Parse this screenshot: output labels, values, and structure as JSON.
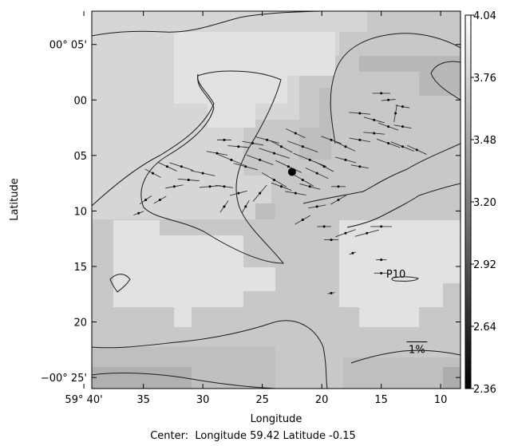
{
  "chart_data": {
    "type": "map",
    "xlabel": "Longitude",
    "ylabel": "Latitude",
    "footer": {
      "prefix": "Center:  Longitude",
      "longitude": "59.42",
      "lat_prefix": "Latitude",
      "latitude": "-0.15"
    },
    "xlim": [
      59.6556,
      59.1389
    ],
    "ylim": [
      0.1333,
      -0.4333
    ],
    "x_ticks": [
      {
        "value": 59.6667,
        "label": "59° 40'"
      },
      {
        "value": 59.5833,
        "label": "35"
      },
      {
        "value": 59.5,
        "label": "30"
      },
      {
        "value": 59.4167,
        "label": "25"
      },
      {
        "value": 59.3333,
        "label": "20"
      },
      {
        "value": 59.25,
        "label": "15"
      },
      {
        "value": 59.1667,
        "label": "10"
      }
    ],
    "y_ticks": [
      {
        "value": 0.0833,
        "label": "00° 05'"
      },
      {
        "value": 0.0,
        "label": "00"
      },
      {
        "value": -0.0833,
        "label": "05"
      },
      {
        "value": -0.1667,
        "label": "10"
      },
      {
        "value": -0.25,
        "label": "15"
      },
      {
        "value": -0.3333,
        "label": "20"
      },
      {
        "value": -0.4167,
        "label": "−00° 25'"
      }
    ],
    "colorbar": {
      "min": 2.36,
      "max": 4.04,
      "ticks": [
        "2.36",
        "2.64",
        "2.92",
        "3.20",
        "3.48",
        "3.76",
        "4.04"
      ]
    },
    "center_marker": {
      "lon": 59.375,
      "lat": -0.108
    },
    "annotations": [
      {
        "text": "P10",
        "lon": 59.243,
        "lat": -0.267
      },
      {
        "text": "1%",
        "lon": 59.2,
        "lat": -0.38
      }
    ],
    "vectors": [
      {
        "lon": 59.36,
        "lat": -0.07,
        "len": 0.045,
        "angle": -20
      },
      {
        "lon": 59.35,
        "lat": -0.09,
        "len": 0.05,
        "angle": -22
      },
      {
        "lon": 59.38,
        "lat": -0.1,
        "len": 0.04,
        "angle": -25
      },
      {
        "lon": 59.4,
        "lat": -0.08,
        "len": 0.045,
        "angle": -18
      },
      {
        "lon": 59.42,
        "lat": -0.09,
        "len": 0.04,
        "angle": -20
      },
      {
        "lon": 59.44,
        "lat": -0.1,
        "len": 0.035,
        "angle": -15
      },
      {
        "lon": 59.46,
        "lat": -0.09,
        "len": 0.04,
        "angle": -22
      },
      {
        "lon": 59.48,
        "lat": -0.08,
        "len": 0.03,
        "angle": -10
      },
      {
        "lon": 59.5,
        "lat": -0.11,
        "len": 0.035,
        "angle": -12
      },
      {
        "lon": 59.52,
        "lat": -0.12,
        "len": 0.03,
        "angle": -5
      },
      {
        "lon": 59.54,
        "lat": -0.13,
        "len": 0.025,
        "angle": 10
      },
      {
        "lon": 59.56,
        "lat": -0.15,
        "len": 0.02,
        "angle": 30
      },
      {
        "lon": 59.58,
        "lat": -0.15,
        "len": 0.02,
        "angle": 35
      },
      {
        "lon": 59.59,
        "lat": -0.17,
        "len": 0.015,
        "angle": 20
      },
      {
        "lon": 59.53,
        "lat": -0.1,
        "len": 0.035,
        "angle": -18
      },
      {
        "lon": 59.55,
        "lat": -0.1,
        "len": 0.03,
        "angle": -25
      },
      {
        "lon": 59.57,
        "lat": -0.11,
        "len": 0.025,
        "angle": -28
      },
      {
        "lon": 59.49,
        "lat": -0.13,
        "len": 0.03,
        "angle": 5
      },
      {
        "lon": 59.47,
        "lat": -0.13,
        "len": 0.025,
        "angle": -8
      },
      {
        "lon": 59.45,
        "lat": -0.14,
        "len": 0.025,
        "angle": 15
      },
      {
        "lon": 59.47,
        "lat": -0.16,
        "len": 0.02,
        "angle": 55
      },
      {
        "lon": 59.44,
        "lat": -0.16,
        "len": 0.02,
        "angle": 60
      },
      {
        "lon": 59.42,
        "lat": -0.14,
        "len": 0.03,
        "angle": 50
      },
      {
        "lon": 59.4,
        "lat": -0.12,
        "len": 0.04,
        "angle": -30
      },
      {
        "lon": 59.39,
        "lat": -0.13,
        "len": 0.03,
        "angle": -20
      },
      {
        "lon": 59.41,
        "lat": -0.06,
        "len": 0.035,
        "angle": -15
      },
      {
        "lon": 59.43,
        "lat": -0.065,
        "len": 0.03,
        "angle": -10
      },
      {
        "lon": 59.45,
        "lat": -0.07,
        "len": 0.03,
        "angle": -5
      },
      {
        "lon": 59.47,
        "lat": -0.06,
        "len": 0.02,
        "angle": 0
      },
      {
        "lon": 59.37,
        "lat": -0.05,
        "len": 0.03,
        "angle": -25
      },
      {
        "lon": 59.39,
        "lat": -0.07,
        "len": 0.035,
        "angle": -28
      },
      {
        "lon": 59.36,
        "lat": -0.12,
        "len": 0.035,
        "angle": -30
      },
      {
        "lon": 59.34,
        "lat": -0.11,
        "len": 0.035,
        "angle": -25
      },
      {
        "lon": 59.33,
        "lat": -0.1,
        "len": 0.03,
        "angle": -28
      },
      {
        "lon": 59.35,
        "lat": -0.13,
        "len": 0.03,
        "angle": -15
      },
      {
        "lon": 59.37,
        "lat": -0.14,
        "len": 0.03,
        "angle": -10
      },
      {
        "lon": 59.34,
        "lat": -0.16,
        "len": 0.025,
        "angle": 10
      },
      {
        "lon": 59.36,
        "lat": -0.18,
        "len": 0.025,
        "angle": 30
      },
      {
        "lon": 59.33,
        "lat": -0.19,
        "len": 0.02,
        "angle": 0
      },
      {
        "lon": 59.32,
        "lat": -0.21,
        "len": 0.02,
        "angle": 0
      },
      {
        "lon": 59.3,
        "lat": -0.2,
        "len": 0.03,
        "angle": 20
      },
      {
        "lon": 59.27,
        "lat": -0.2,
        "len": 0.035,
        "angle": 15
      },
      {
        "lon": 59.25,
        "lat": -0.19,
        "len": 0.03,
        "angle": 0
      },
      {
        "lon": 59.29,
        "lat": -0.23,
        "len": 0.01,
        "angle": 20
      },
      {
        "lon": 59.25,
        "lat": -0.24,
        "len": 0.015,
        "angle": 0
      },
      {
        "lon": 59.25,
        "lat": -0.26,
        "len": 0.02,
        "angle": 0
      },
      {
        "lon": 59.32,
        "lat": -0.29,
        "len": 0.01,
        "angle": 10
      },
      {
        "lon": 59.32,
        "lat": -0.06,
        "len": 0.03,
        "angle": -20
      },
      {
        "lon": 59.3,
        "lat": -0.07,
        "len": 0.03,
        "angle": -25
      },
      {
        "lon": 59.28,
        "lat": -0.06,
        "len": 0.03,
        "angle": -10
      },
      {
        "lon": 59.26,
        "lat": -0.05,
        "len": 0.03,
        "angle": -5
      },
      {
        "lon": 59.24,
        "lat": -0.065,
        "len": 0.035,
        "angle": -20
      },
      {
        "lon": 59.22,
        "lat": -0.07,
        "len": 0.035,
        "angle": -22
      },
      {
        "lon": 59.2,
        "lat": -0.075,
        "len": 0.03,
        "angle": -25
      },
      {
        "lon": 59.26,
        "lat": -0.03,
        "len": 0.03,
        "angle": -15
      },
      {
        "lon": 59.24,
        "lat": -0.04,
        "len": 0.03,
        "angle": -20
      },
      {
        "lon": 59.22,
        "lat": -0.04,
        "len": 0.025,
        "angle": -10
      },
      {
        "lon": 59.28,
        "lat": -0.02,
        "len": 0.03,
        "angle": -5
      },
      {
        "lon": 59.25,
        "lat": 0.01,
        "len": 0.025,
        "angle": 0
      },
      {
        "lon": 59.24,
        "lat": 0.0,
        "len": 0.02,
        "angle": 5
      },
      {
        "lon": 59.22,
        "lat": -0.01,
        "len": 0.02,
        "angle": -10
      },
      {
        "lon": 59.23,
        "lat": -0.02,
        "len": 0.025,
        "angle": 80
      },
      {
        "lon": 59.3,
        "lat": -0.09,
        "len": 0.03,
        "angle": -15
      },
      {
        "lon": 59.28,
        "lat": -0.1,
        "len": 0.025,
        "angle": -10
      },
      {
        "lon": 59.31,
        "lat": -0.13,
        "len": 0.02,
        "angle": 0
      },
      {
        "lon": 59.31,
        "lat": -0.15,
        "len": 0.025,
        "angle": 30
      }
    ]
  }
}
